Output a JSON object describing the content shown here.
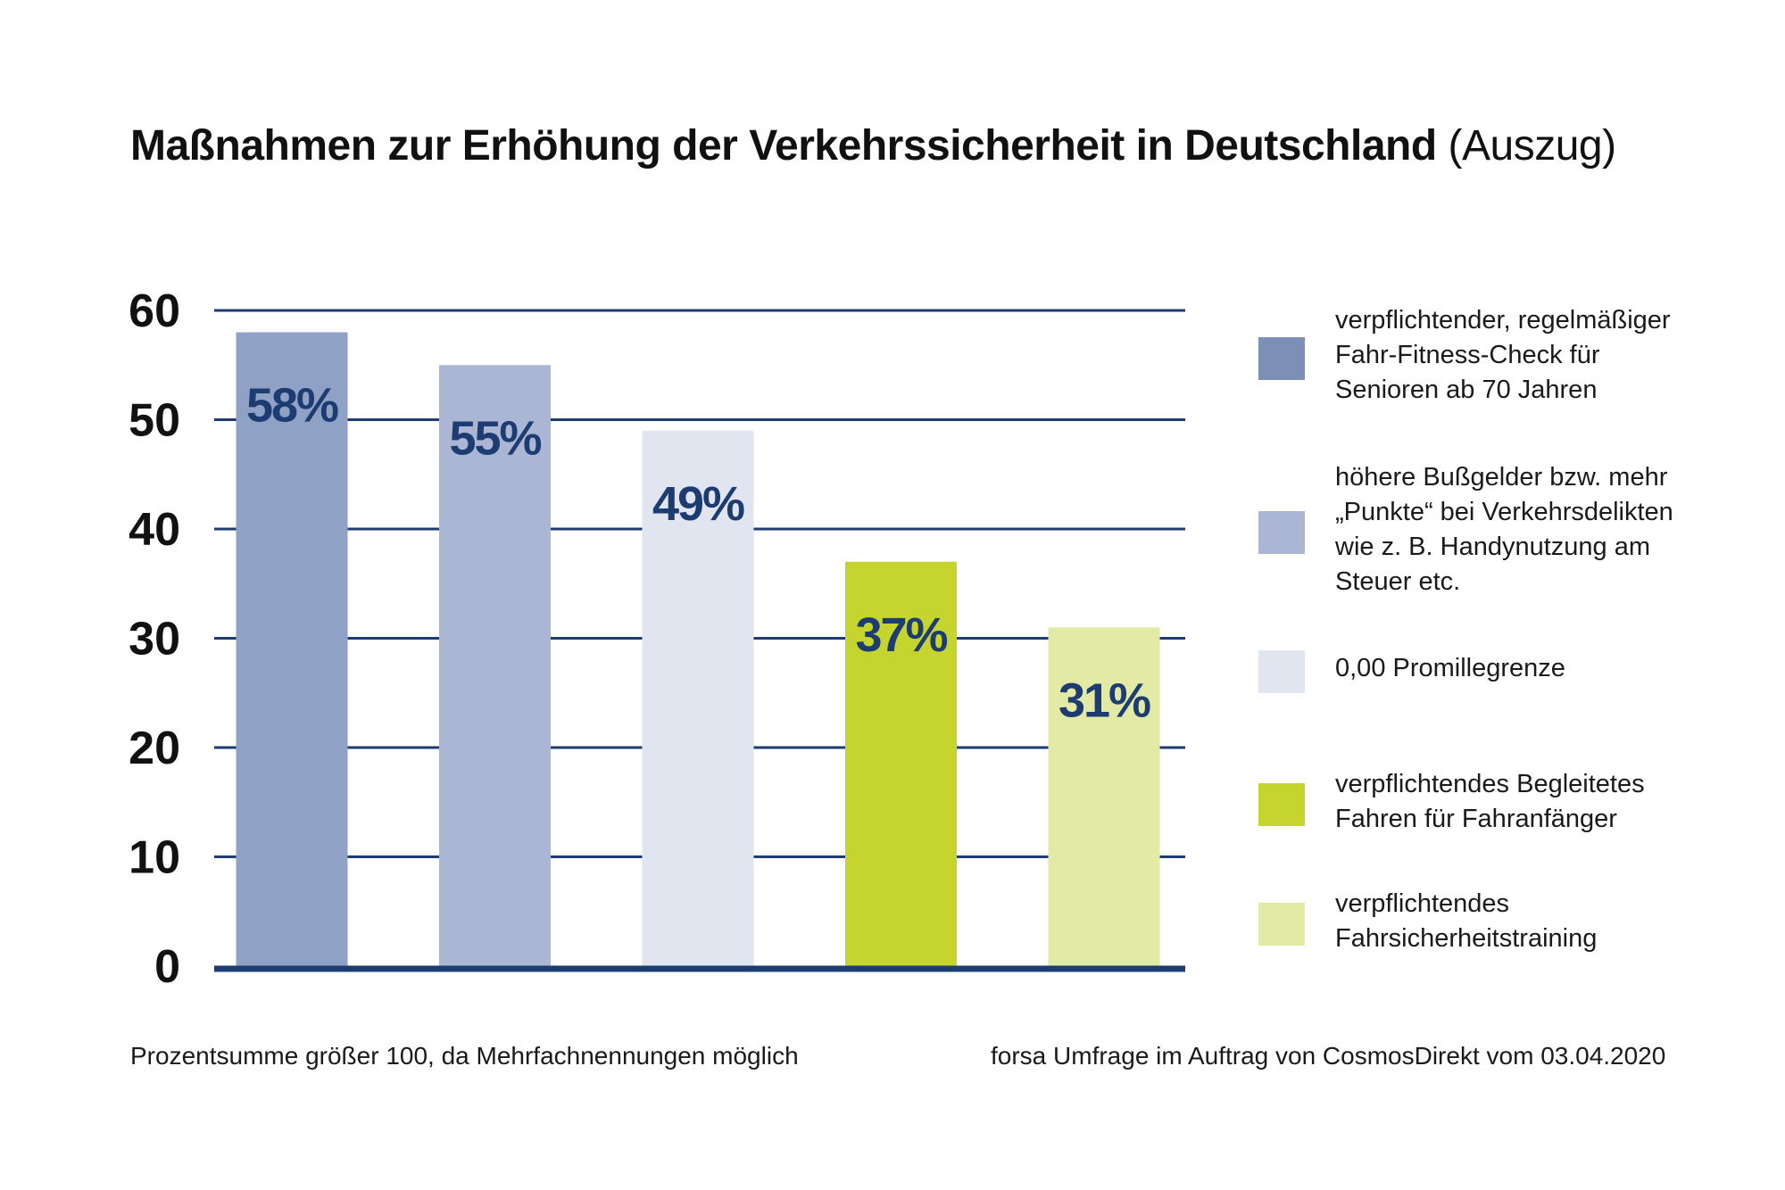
{
  "chart_data": {
    "type": "bar",
    "title": "Maßnahmen zur Erhöhung der Verkehrssicherheit in Deutschland",
    "subtitle": "(Auszug)",
    "ylim": [
      0,
      60
    ],
    "yticks": [
      "0",
      "10",
      "20",
      "30",
      "40",
      "50",
      "60"
    ],
    "grid": true,
    "legend_position": "right",
    "categories": [
      "verpflichtender, regelmäßiger Fahr-Fitness-Check für Senioren ab 70 Jahren",
      "höhere Bußgelder bzw. mehr „Punkte“ bei Verkehrsdelikten wie z. B. Handynutzung am Steuer etc.",
      "0,00 Promillegrenze",
      "verpflichtendes Begleitetes Fahren für Fahranfänger",
      "verpflichtendes Fahrsicherheitstraining"
    ],
    "values": [
      58,
      55,
      49,
      37,
      31
    ],
    "value_labels": [
      "58%",
      "55%",
      "49%",
      "37%",
      "31%"
    ],
    "colors": [
      "#8fa1c4",
      "#aab6d3",
      "#e1e5f0",
      "#c5d52e",
      "#e3eaa6"
    ],
    "grid_color": "#1d3d72",
    "label_color": "#1d3d72"
  },
  "legend": [
    {
      "label": "verpflichtender, regelmäßiger\nFahr-Fitness-Check für\nSenioren ab 70 Jahren",
      "color": "#7b8fb7"
    },
    {
      "label": "höhere Bußgelder bzw. mehr\n„Punkte“ bei Verkehrsdelikten\nwie z. B. Handynutzung am\nSteuer etc.",
      "color": "#aab6d3"
    },
    {
      "label": "0,00 Promillegrenze",
      "color": "#e1e5f0"
    },
    {
      "label": "verpflichtendes Begleitetes\nFahren für Fahranfänger",
      "color": "#c5d52e"
    },
    {
      "label": "verpflichtendes\nFahrsicherheitstraining",
      "color": "#e3eaa6"
    }
  ],
  "footnote_left": "Prozentsumme größer 100, da Mehrfachnennungen möglich",
  "footnote_right": "forsa Umfrage im Auftrag von CosmosDirekt vom 03.04.2020"
}
